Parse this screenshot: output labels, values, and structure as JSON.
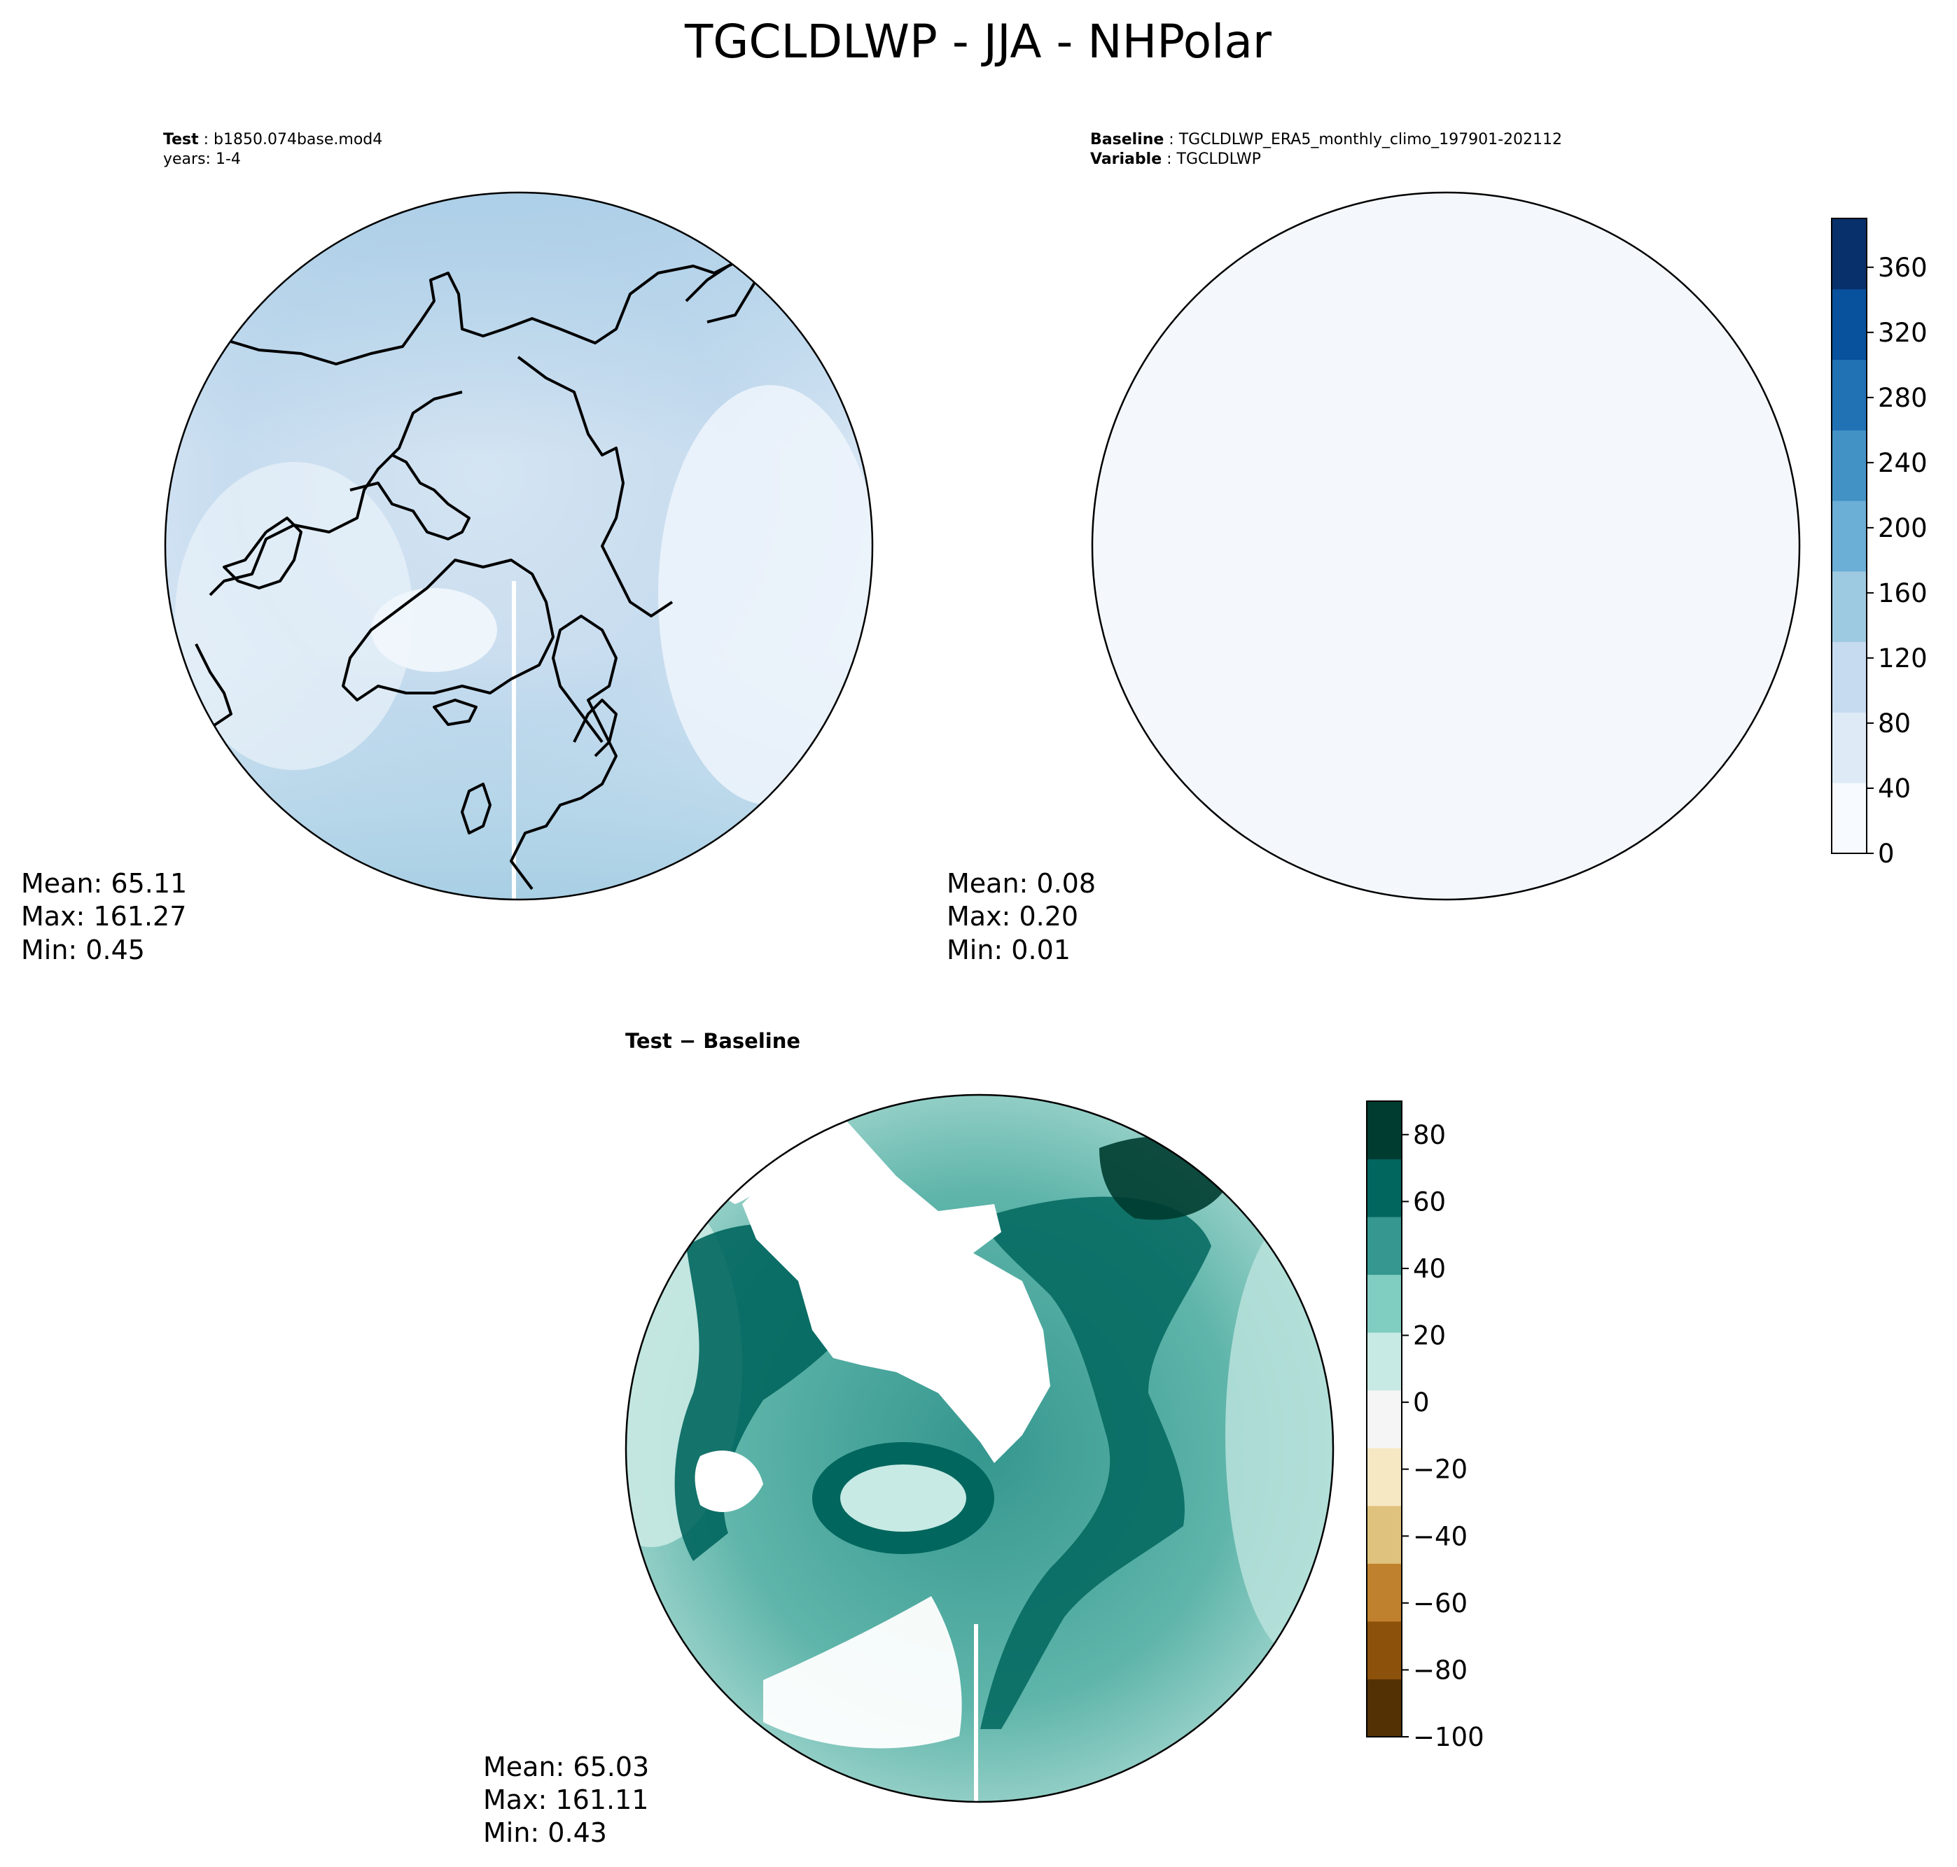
{
  "figure": {
    "title": "TGCLDLWP - JJA - NHPolar"
  },
  "panels": {
    "test": {
      "header_bold": "Test",
      "header_value": "b1850.074base.mod4",
      "header_line2": "years: 1-4",
      "stats": {
        "mean": "Mean: 65.11",
        "max": "Max: 161.27",
        "min": "Min:  0.45"
      }
    },
    "baseline": {
      "header_bold": "Baseline",
      "header_value": "TGCLDLWP_ERA5_monthly_climo_197901-202112",
      "header2_bold": "Variable",
      "header2_value": "TGCLDLWP",
      "stats": {
        "mean": "Mean:  0.08",
        "max": "Max:  0.20",
        "min": "Min:  0.01"
      }
    },
    "diff": {
      "header": "Test − Baseline",
      "stats": {
        "mean": "Mean: 65.03",
        "max": "Max: 161.11",
        "min": "Min:  0.43"
      }
    }
  },
  "chart_data": [
    {
      "type": "heatmap",
      "panel": "test",
      "projection": "north-polar-stereographic",
      "colormap": "Blues",
      "mean": 65.11,
      "max": 161.27,
      "min": 0.45
    },
    {
      "type": "heatmap",
      "panel": "baseline",
      "projection": "north-polar-stereographic",
      "colormap": "Blues",
      "mean": 0.08,
      "max": 0.2,
      "min": 0.01
    },
    {
      "type": "heatmap",
      "panel": "diff",
      "projection": "north-polar-stereographic",
      "colormap": "BrBG",
      "mean": 65.03,
      "max": 161.11,
      "min": 0.43
    }
  ],
  "colorbars": {
    "top": {
      "colormap": "Blues",
      "range": [
        0,
        390
      ],
      "ticks": [
        "0",
        "40",
        "80",
        "120",
        "160",
        "200",
        "240",
        "280",
        "320",
        "360"
      ],
      "tick_values": [
        0,
        40,
        80,
        120,
        160,
        200,
        240,
        280,
        320,
        360
      ],
      "colors": [
        "#f7fbff",
        "#deebf7",
        "#c6dbef",
        "#9ecae1",
        "#6baed6",
        "#4292c6",
        "#2171b5",
        "#08519c",
        "#08306b"
      ]
    },
    "bottom": {
      "colormap": "BrBG",
      "range": [
        -100,
        90
      ],
      "ticks": [
        "80",
        "60",
        "40",
        "20",
        "0",
        "−20",
        "−40",
        "−60",
        "−80",
        "−100"
      ],
      "tick_values": [
        80,
        60,
        40,
        20,
        0,
        -20,
        -40,
        -60,
        -80,
        -100
      ],
      "colors": [
        "#543005",
        "#8c510a",
        "#bf812d",
        "#dfc27d",
        "#f6e8c3",
        "#f5f5f5",
        "#c7eae5",
        "#80cdc1",
        "#35978f",
        "#01665e",
        "#003c30"
      ]
    }
  }
}
